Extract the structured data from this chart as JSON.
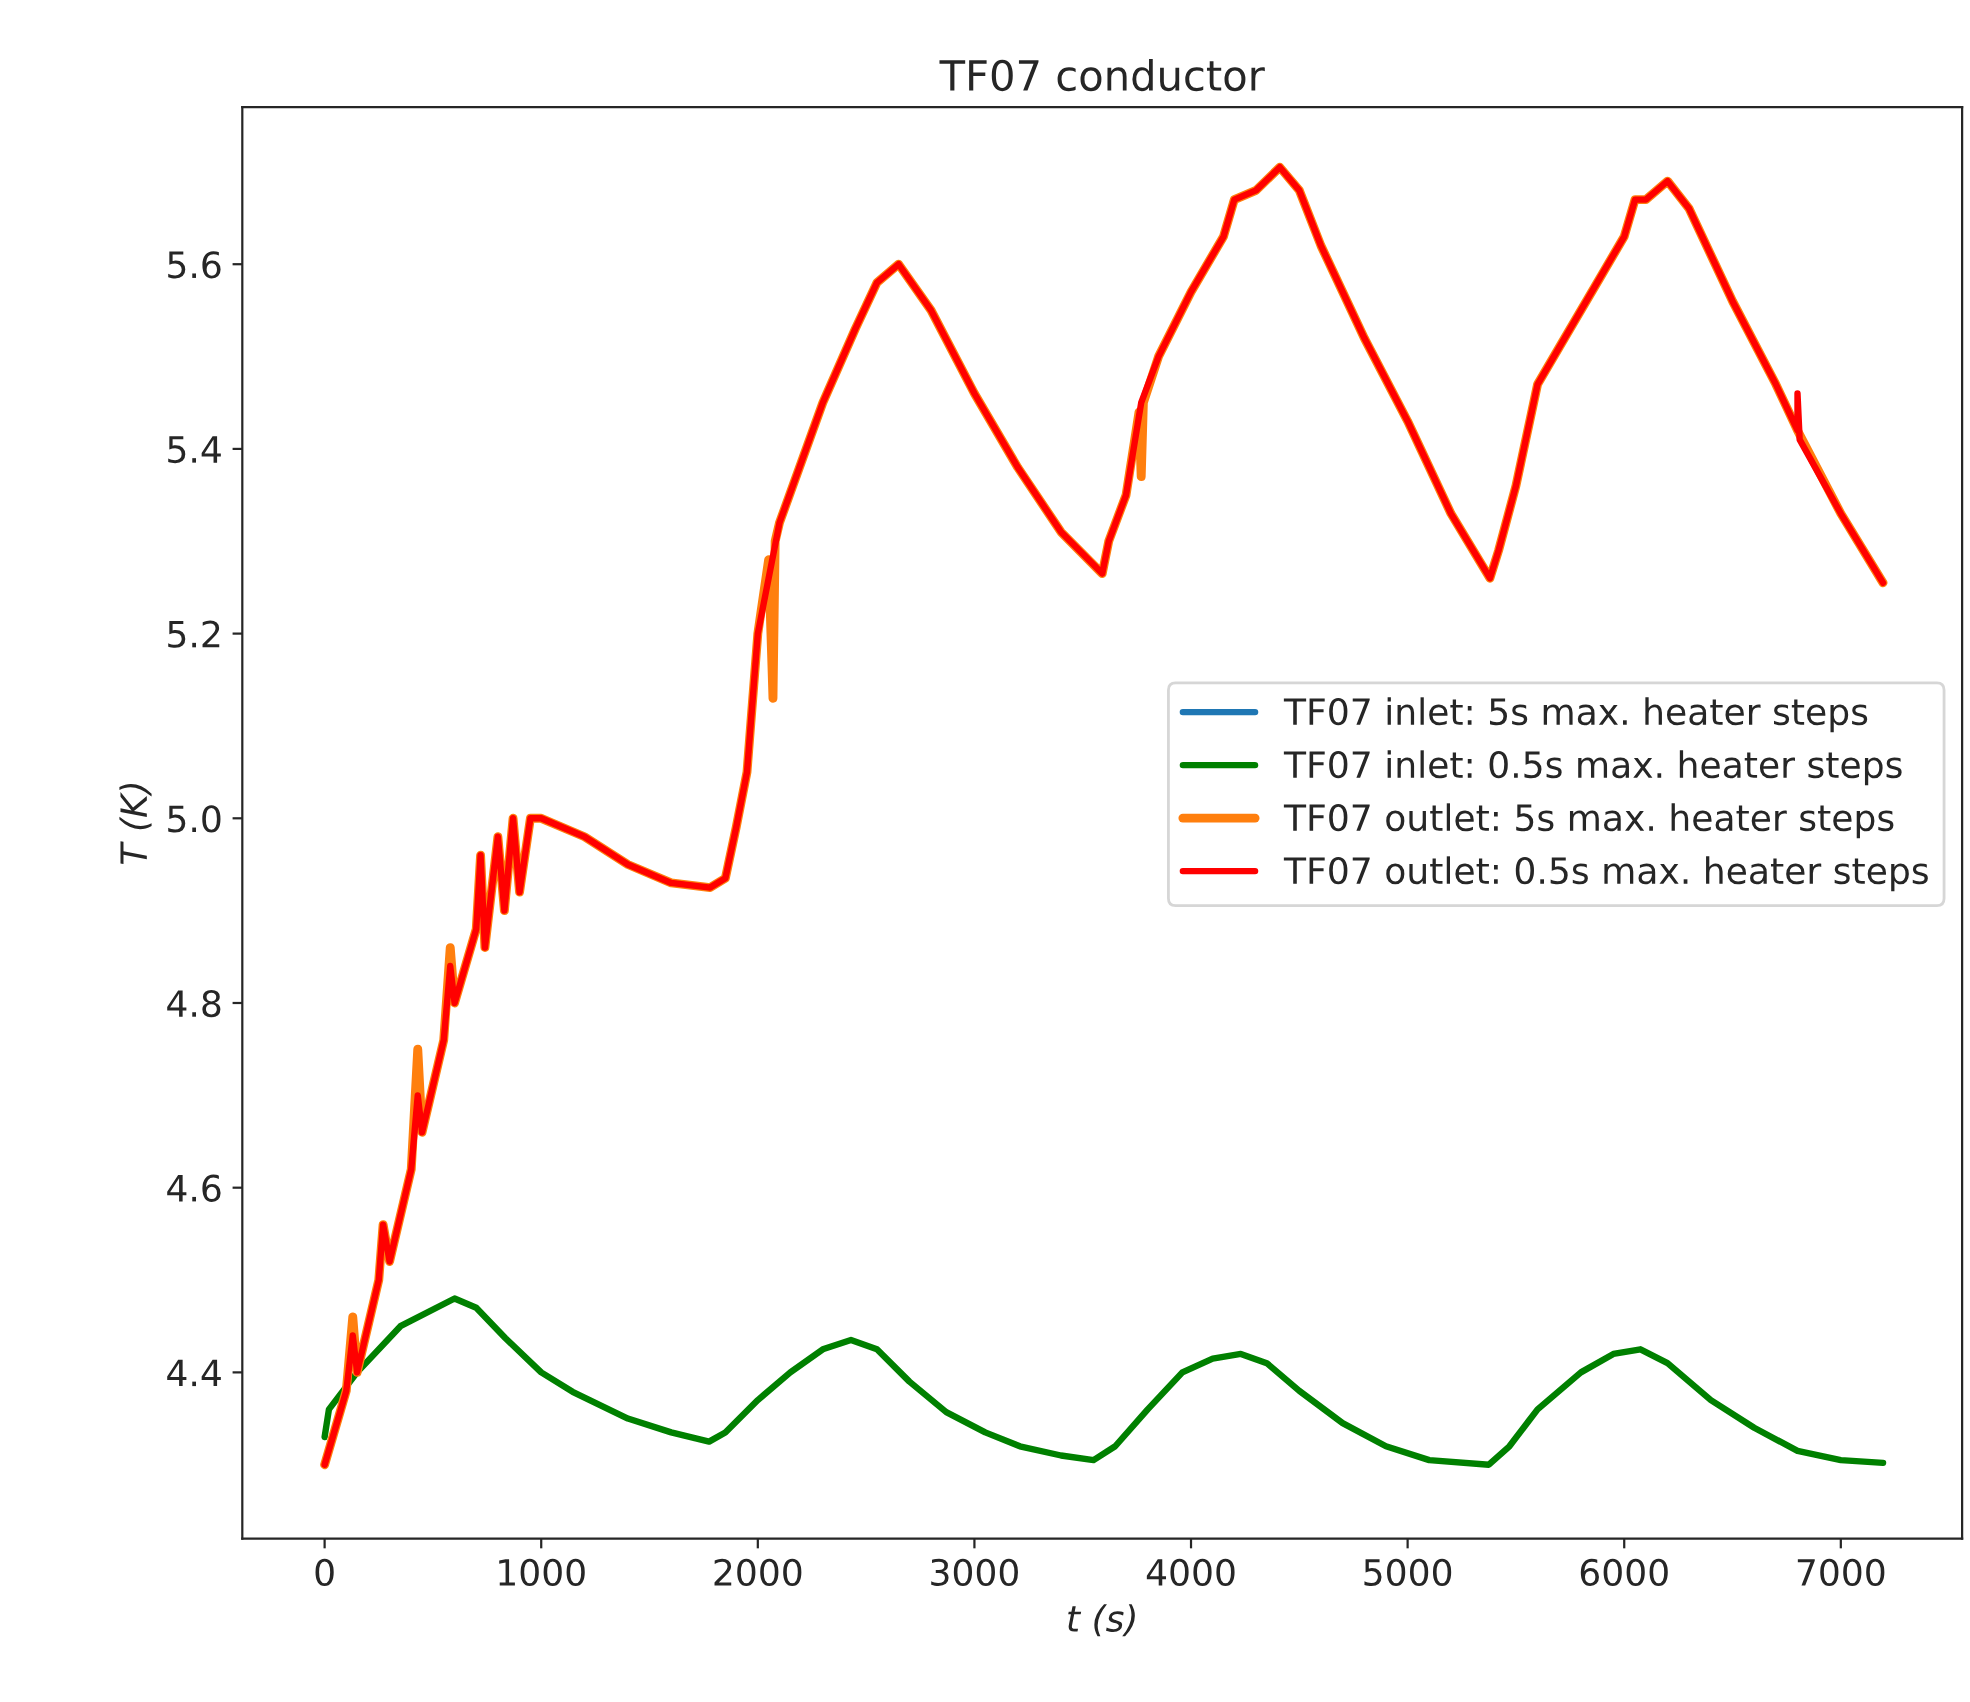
{
  "chart_data": {
    "type": "line",
    "title": "TF07 conductor",
    "xlabel": "t (s)",
    "ylabel": "T (K)",
    "xlim": [
      -380,
      7560
    ],
    "xticks": [
      0,
      1000,
      2000,
      3000,
      4000,
      5000,
      6000,
      7000
    ],
    "ylim": [
      4.22,
      5.77
    ],
    "yticks": [
      4.4,
      4.6,
      4.8,
      {
        "value": 5.0,
        "label": "5.0"
      },
      5.2,
      5.4,
      5.6
    ],
    "grid": false,
    "legend": "right",
    "marker": "none",
    "line_style": "solid",
    "series": [
      {
        "name": "TF07 inlet: 5s max. heater steps",
        "color": "#1f77b4"
      },
      {
        "name": "TF07 inlet: 0.5s max. heater steps",
        "color": "#008000",
        "x": [
          0,
          20,
          150,
          350,
          600,
          700,
          835,
          1000,
          1145,
          1400,
          1600,
          1775,
          1850,
          2000,
          2150,
          2300,
          2430,
          2550,
          2700,
          2870,
          3050,
          3210,
          3400,
          3550,
          3650,
          3800,
          3960,
          4100,
          4230,
          4350,
          4500,
          4700,
          4900,
          5100,
          5375,
          5470,
          5600,
          5800,
          5950,
          6075,
          6200,
          6400,
          6600,
          6800,
          7000,
          7195
        ],
        "values": [
          4.33,
          4.36,
          4.4,
          4.45,
          4.48,
          4.47,
          4.437,
          4.4,
          4.379,
          4.35,
          4.335,
          4.325,
          4.335,
          4.37,
          4.4,
          4.425,
          4.435,
          4.425,
          4.39,
          4.357,
          4.335,
          4.32,
          4.31,
          4.305,
          4.32,
          4.36,
          4.4,
          4.415,
          4.42,
          4.41,
          4.38,
          4.345,
          4.32,
          4.305,
          4.3,
          4.32,
          4.36,
          4.4,
          4.42,
          4.425,
          4.41,
          4.37,
          4.34,
          4.315,
          4.305,
          4.302
        ]
      },
      {
        "name": "TF07 outlet: 5s max. heater steps",
        "color": "#ff7f0e",
        "x": [
          0,
          100,
          130,
          150,
          250,
          270,
          300,
          400,
          430,
          450,
          550,
          580,
          600,
          700,
          720,
          740,
          800,
          830,
          870,
          900,
          950,
          1000,
          1200,
          1400,
          1600,
          1780,
          1850,
          1900,
          1950,
          2000,
          2050,
          2070,
          2080,
          2100,
          2300,
          2450,
          2550,
          2650,
          2800,
          3000,
          3200,
          3400,
          3590,
          3620,
          3700,
          3760,
          3770,
          3780,
          3850,
          4000,
          4150,
          4200,
          4300,
          4410,
          4500,
          4600,
          4800,
          5000,
          5200,
          5380,
          5420,
          5500,
          5600,
          5700,
          5900,
          6000,
          6050,
          6100,
          6200,
          6300,
          6500,
          6700,
          6800,
          7000,
          7195
        ],
        "values": [
          4.3,
          4.38,
          4.46,
          4.4,
          4.5,
          4.56,
          4.52,
          4.62,
          4.75,
          4.66,
          4.76,
          4.86,
          4.8,
          4.88,
          4.96,
          4.86,
          4.98,
          4.9,
          5.0,
          4.92,
          5.0,
          5.0,
          4.98,
          4.95,
          4.93,
          4.925,
          4.935,
          4.99,
          5.05,
          5.2,
          5.28,
          5.13,
          5.3,
          5.32,
          5.45,
          5.53,
          5.58,
          5.6,
          5.55,
          5.46,
          5.38,
          5.31,
          5.265,
          5.3,
          5.35,
          5.44,
          5.37,
          5.45,
          5.5,
          5.57,
          5.63,
          5.67,
          5.68,
          5.705,
          5.68,
          5.62,
          5.52,
          5.43,
          5.33,
          5.26,
          5.29,
          5.36,
          5.47,
          5.51,
          5.59,
          5.63,
          5.67,
          5.67,
          5.69,
          5.66,
          5.56,
          5.47,
          5.42,
          5.33,
          5.255
        ]
      },
      {
        "name": "TF07 outlet: 0.5s max. heater steps",
        "color": "#ff0000",
        "x": [
          0,
          100,
          130,
          150,
          250,
          270,
          300,
          400,
          430,
          450,
          550,
          580,
          600,
          700,
          720,
          740,
          800,
          830,
          870,
          900,
          950,
          1000,
          1200,
          1400,
          1600,
          1780,
          1850,
          1900,
          1950,
          2000,
          2100,
          2300,
          2450,
          2550,
          2650,
          2800,
          3000,
          3200,
          3400,
          3590,
          3620,
          3700,
          3770,
          3850,
          4000,
          4150,
          4200,
          4300,
          4410,
          4500,
          4600,
          4800,
          5000,
          5200,
          5380,
          5420,
          5500,
          5600,
          5700,
          5900,
          6000,
          6050,
          6100,
          6200,
          6300,
          6500,
          6700,
          6800,
          6800,
          6810,
          7000,
          7195
        ],
        "values": [
          4.3,
          4.38,
          4.44,
          4.4,
          4.5,
          4.56,
          4.52,
          4.62,
          4.7,
          4.66,
          4.76,
          4.84,
          4.8,
          4.88,
          4.96,
          4.86,
          4.98,
          4.9,
          5.0,
          4.92,
          5.0,
          5.0,
          4.98,
          4.95,
          4.93,
          4.925,
          4.935,
          4.99,
          5.05,
          5.2,
          5.32,
          5.45,
          5.53,
          5.58,
          5.6,
          5.55,
          5.46,
          5.38,
          5.31,
          5.265,
          5.3,
          5.35,
          5.45,
          5.5,
          5.57,
          5.63,
          5.67,
          5.68,
          5.705,
          5.68,
          5.62,
          5.52,
          5.43,
          5.33,
          5.26,
          5.29,
          5.36,
          5.47,
          5.51,
          5.59,
          5.63,
          5.67,
          5.67,
          5.69,
          5.66,
          5.56,
          5.47,
          5.42,
          5.46,
          5.41,
          5.33,
          5.255
        ]
      }
    ]
  }
}
